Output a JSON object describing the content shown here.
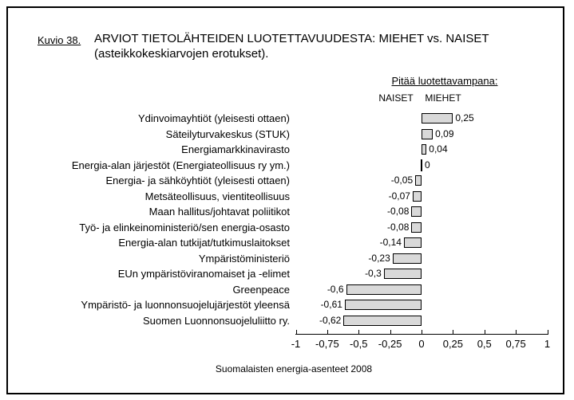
{
  "figure": {
    "label": "Kuvio 38.",
    "title_line1": "ARVIOT TIETOLÄHTEIDEN LUOTETTAVUUDESTA: MIEHET vs. NAISET",
    "title_line2": "(asteikkokeskiarvojen erotukset).",
    "legend_heading": "Pitää luotettavampana:",
    "legend_left": "NAISET",
    "legend_right": "MIEHET",
    "footer": "Suomalaisten energia-asenteet 2008"
  },
  "chart_data": {
    "type": "bar",
    "orientation": "horizontal",
    "title": "ARVIOT TIETOLÄHTEIDEN LUOTETTAVUUDESTA: MIEHET vs. NAISET (asteikkokeskiarvojen erotukset).",
    "categories": [
      "Ydinvoimayhtiöt (yleisesti ottaen)",
      "Säteilyturvakeskus (STUK)",
      "Energiamarkkinavirasto",
      "Energia-alan järjestöt (Energiateollisuus ry ym.)",
      "Energia- ja sähköyhtiöt (yleisesti ottaen)",
      "Metsäteollisuus, vientiteollisuus",
      "Maan hallitus/johtavat poliitikot",
      "Työ- ja elinkeinoministeriö/sen energia-osasto",
      "Energia-alan tutkijat/tutkimuslaitokset",
      "Ympäristöministeriö",
      "EUn ympäristöviranomaiset ja -elimet",
      "Greenpeace",
      "Ympäristö- ja luonnonsuojelujärjestöt yleensä",
      "Suomen Luonnonsuojeluliitto ry."
    ],
    "values": [
      0.25,
      0.09,
      0.04,
      0,
      -0.05,
      -0.07,
      -0.08,
      -0.08,
      -0.14,
      -0.23,
      -0.3,
      -0.6,
      -0.61,
      -0.62
    ],
    "value_labels": [
      "0,25",
      "0,09",
      "0,04",
      "0",
      "-0,05",
      "-0,07",
      "-0,08",
      "-0,08",
      "-0,14",
      "-0,23",
      "-0,3",
      "-0,6",
      "-0,61",
      "-0,62"
    ],
    "xlim": [
      -1,
      1
    ],
    "x_ticks": [
      -1,
      -0.75,
      -0.5,
      -0.25,
      0,
      0.25,
      0.5,
      0.75,
      1
    ],
    "x_tick_labels": [
      "-1",
      "-0,75",
      "-0,5",
      "-0,25",
      "0",
      "0,25",
      "0,5",
      "0,75",
      "1"
    ],
    "legend_position": "top-right",
    "grid": false,
    "bar_fill": "#d9d9d9",
    "bar_border": "#000000",
    "background": "#ffffff"
  }
}
